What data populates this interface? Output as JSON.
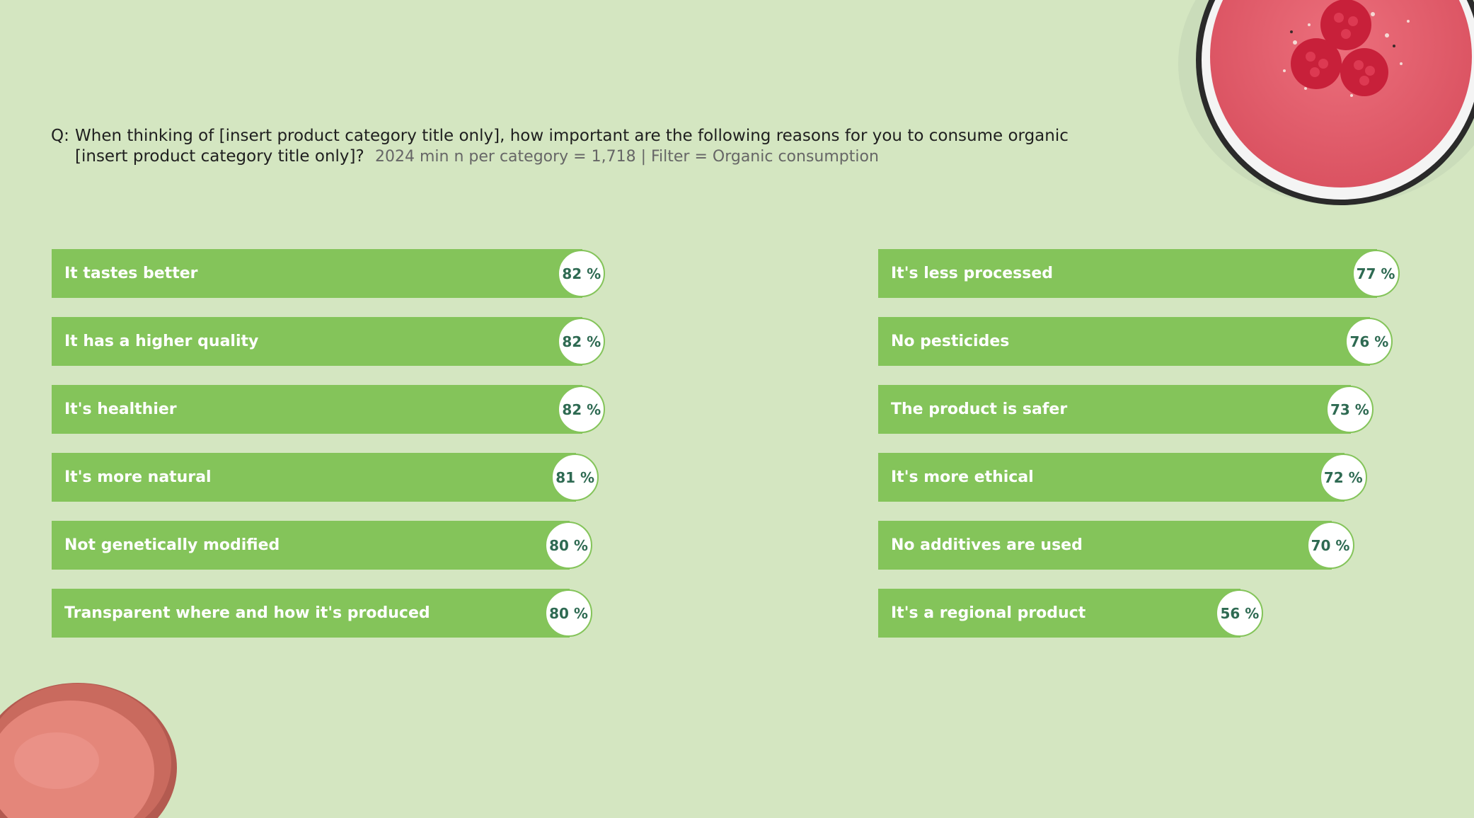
{
  "question": {
    "prefix": "Q:",
    "text_line1": "When thinking of [insert product category title only], how important are the following reasons for you to consume organic",
    "text_line2": "[insert product category title only]?",
    "meta": "2024 min n per category = 1,718 | Filter = Organic consumption"
  },
  "colors": {
    "background": "#d4e6c1",
    "bar": "#84c45a",
    "badge_text": "#2e6a52"
  },
  "decorations": {
    "top_right": "smoothie-bowl-image",
    "bottom_left": "macaron-image"
  },
  "chart_data": {
    "type": "bar",
    "orientation": "horizontal",
    "value_format": "{v} %",
    "columns": [
      {
        "categories": [
          "It tastes better",
          "It has a higher quality",
          "It's healthier",
          "It's more natural",
          "Not genetically modified",
          "Transparent where and how it's produced"
        ],
        "values": [
          82,
          82,
          82,
          81,
          80,
          80
        ],
        "labels": [
          "82 %",
          "82 %",
          "82 %",
          "81 %",
          "80 %",
          "80 %"
        ]
      },
      {
        "categories": [
          "It's less processed",
          "No pesticides",
          "The product is safer",
          "It's more ethical",
          "No additives are used",
          "It's a regional product"
        ],
        "values": [
          77,
          76,
          73,
          72,
          70,
          56
        ],
        "labels": [
          "77 %",
          "76 %",
          "73 %",
          "72 %",
          "70 %",
          "56 %"
        ]
      }
    ]
  }
}
